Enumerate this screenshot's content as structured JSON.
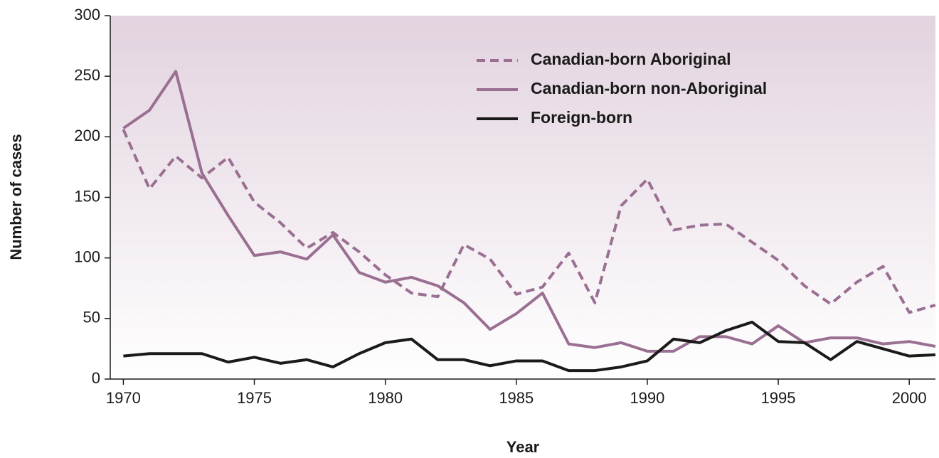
{
  "chart_data": {
    "type": "line",
    "xlabel": "Year",
    "ylabel": "Number of cases",
    "x": [
      1970,
      1971,
      1972,
      1973,
      1974,
      1975,
      1976,
      1977,
      1978,
      1979,
      1980,
      1981,
      1982,
      1983,
      1984,
      1985,
      1986,
      1987,
      1988,
      1989,
      1990,
      1991,
      1992,
      1993,
      1994,
      1995,
      1996,
      1997,
      1998,
      1999,
      2000,
      2001
    ],
    "series": [
      {
        "name": "Canadian-born Aboriginal",
        "color": "#9a6f92",
        "style": "dashed",
        "values": [
          206,
          157,
          184,
          166,
          183,
          146,
          129,
          108,
          121,
          105,
          86,
          71,
          68,
          111,
          99,
          70,
          76,
          104,
          63,
          143,
          165,
          123,
          127,
          128,
          113,
          98,
          77,
          62,
          80,
          93,
          55,
          61
        ]
      },
      {
        "name": "Canadian-born non-Aboriginal",
        "color": "#9a6f92",
        "style": "solid",
        "values": [
          207,
          222,
          254,
          170,
          135,
          102,
          105,
          99,
          119,
          88,
          80,
          84,
          77,
          63,
          41,
          54,
          71,
          29,
          26,
          30,
          23,
          23,
          35,
          35,
          29,
          44,
          30,
          34,
          34,
          29,
          31,
          27
        ]
      },
      {
        "name": "Foreign-born",
        "color": "#1a1a1a",
        "style": "solid",
        "values": [
          19,
          21,
          21,
          21,
          14,
          18,
          13,
          16,
          10,
          21,
          30,
          33,
          16,
          16,
          11,
          15,
          15,
          7,
          7,
          10,
          15,
          33,
          30,
          40,
          47,
          31,
          30,
          16,
          31,
          25,
          19,
          20
        ]
      }
    ],
    "xlim": [
      1969.5,
      2001
    ],
    "ylim": [
      0,
      300
    ],
    "xticks": [
      1970,
      1975,
      1980,
      1985,
      1990,
      1995,
      2000
    ],
    "yticks": [
      0,
      50,
      100,
      150,
      200,
      250,
      300
    ],
    "legend": "upper right"
  }
}
